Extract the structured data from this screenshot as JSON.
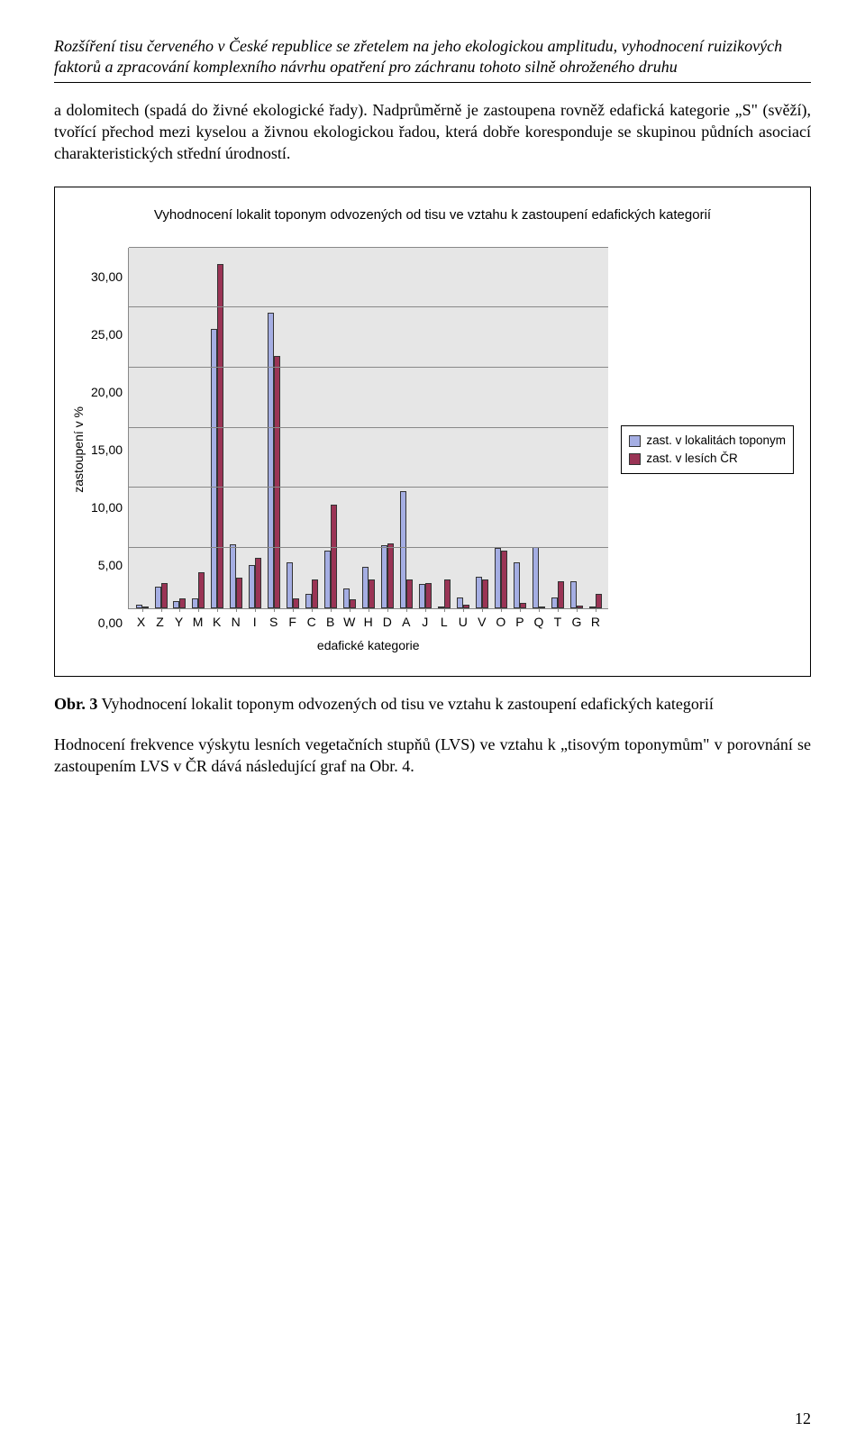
{
  "header": {
    "title": "Rozšíření tisu červeného v České republice se zřetelem na jeho ekologickou amplitudu, vyhodnocení ruizikových faktorů a zpracování komplexního návrhu opatření pro záchranu tohoto silně ohroženého druhu"
  },
  "para1": "a dolomitech (spadá do živné ekologické řady). Nadprůměrně je zastoupena rovněž edafická kategorie „S\" (svěží), tvořící přechod mezi kyselou a živnou ekologickou řadou, která dobře koresponduje se skupinou půdních asociací charakteristických střední úrodností.",
  "chart": {
    "title": "Vyhodnocení lokalit toponym odvozených od tisu ve vztahu k zastoupení edafických kategorií",
    "ylabel": "zastoupení v %",
    "xlabel": "edafické kategorie",
    "ymax": 30,
    "ytick_step": 5,
    "background_color": "#e6e6e6",
    "grid_color": "#888888",
    "series": [
      {
        "name": "zast. v  lokalitách toponym",
        "color": "#a5aee3"
      },
      {
        "name": "zast. v lesích ČR",
        "color": "#9a3455"
      }
    ],
    "categories": [
      "X",
      "Z",
      "Y",
      "M",
      "K",
      "N",
      "I",
      "S",
      "F",
      "C",
      "B",
      "W",
      "H",
      "D",
      "A",
      "J",
      "L",
      "U",
      "V",
      "O",
      "P",
      "Q",
      "T",
      "G",
      "R"
    ],
    "values_series1": [
      0.3,
      1.8,
      0.6,
      0.8,
      23.2,
      5.3,
      3.6,
      24.6,
      3.8,
      1.2,
      4.8,
      1.6,
      3.4,
      5.2,
      9.7,
      2.0,
      0.0,
      0.9,
      2.6,
      5.0,
      3.8,
      5.1,
      0.9,
      2.2,
      0.0
    ],
    "values_series2": [
      0.1,
      2.1,
      0.8,
      3.0,
      28.6,
      2.5,
      4.2,
      21.0,
      0.8,
      2.4,
      8.6,
      0.7,
      2.4,
      5.4,
      2.4,
      2.1,
      2.4,
      0.3,
      2.4,
      4.8,
      0.4,
      0.1,
      2.2,
      0.2,
      1.2
    ]
  },
  "figcaption": {
    "lead": "Obr. 3",
    "rest": " Vyhodnocení lokalit toponym odvozených od tisu ve vztahu k zastoupení edafických kategorií"
  },
  "para2": "Hodnocení frekvence výskytu lesních vegetačních stupňů (LVS) ve vztahu k „tisovým toponymům\" v porovnání se zastoupením LVS v ČR dává následující graf na Obr. 4.",
  "pagenum": "12"
}
